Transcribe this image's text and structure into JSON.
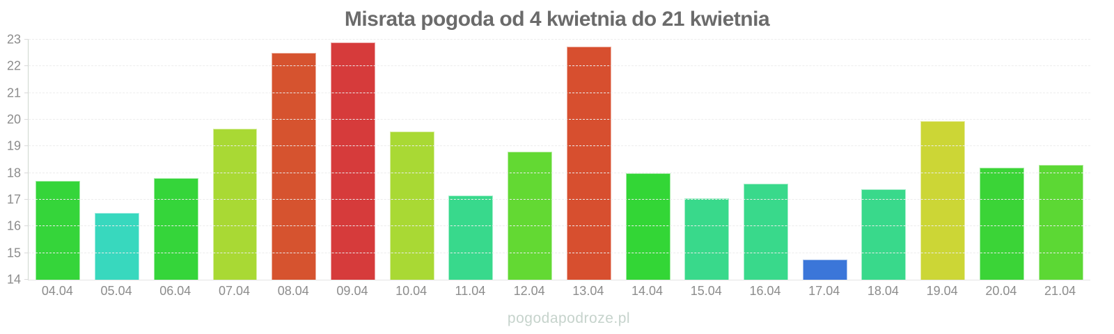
{
  "watermark": {
    "text": "pogodapodroze.pl"
  },
  "chart_data": {
    "type": "bar",
    "title": "Misrata pogoda od 4 kwietnia do 21 kwietnia",
    "categories": [
      "04.04",
      "05.04",
      "06.04",
      "07.04",
      "08.04",
      "09.04",
      "10.04",
      "11.04",
      "12.04",
      "13.04",
      "14.04",
      "15.04",
      "16.04",
      "17.04",
      "18.04",
      "19.04",
      "20.04",
      "21.04"
    ],
    "values": [
      17.7,
      16.5,
      17.8,
      19.65,
      22.5,
      22.9,
      19.55,
      17.15,
      18.8,
      22.75,
      18.0,
      17.05,
      17.6,
      14.75,
      17.4,
      19.95,
      18.2,
      18.3
    ],
    "bar_colors": [
      "#35d53a",
      "#38d8be",
      "#35d53a",
      "#a9d934",
      "#d6532f",
      "#d63b3b",
      "#a9d934",
      "#38d98c",
      "#63d933",
      "#d74f2f",
      "#33d636",
      "#39d98b",
      "#39d98b",
      "#3b76d9",
      "#39d98b",
      "#ccd636",
      "#3bd437",
      "#5cd834"
    ],
    "xlabel": "",
    "ylabel": "",
    "ylim": [
      14,
      23
    ],
    "y_ticks": [
      14,
      15,
      16,
      17,
      18,
      19,
      20,
      21,
      22,
      23
    ],
    "grid": true,
    "legend": false
  },
  "theme": {
    "background": "#ffffff",
    "title_color": "#6b6b6b",
    "axis_label_color": "#8c8c8c",
    "grid_color": "#ececec",
    "axis_line_color": "#cdd6cd",
    "watermark_color": "#c6d3cc"
  }
}
